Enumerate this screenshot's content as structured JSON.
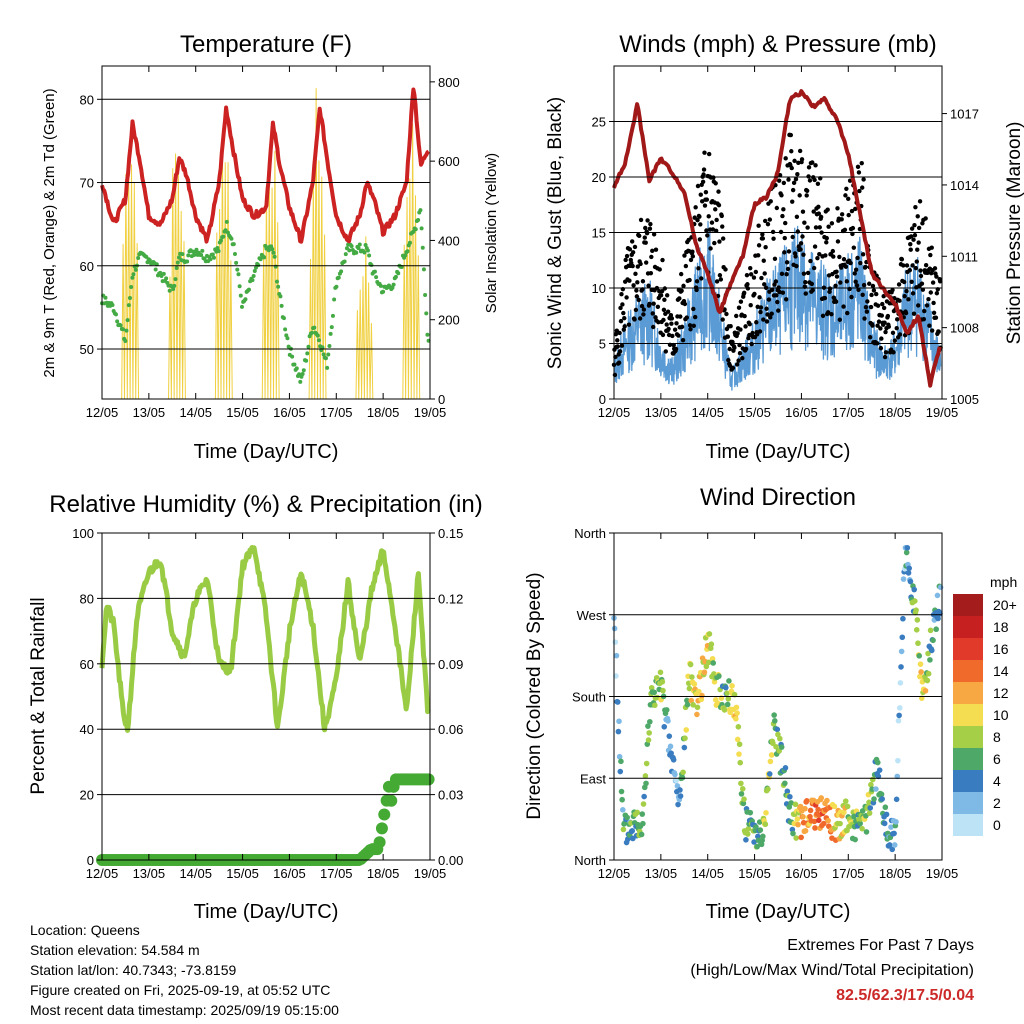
{
  "x_ticks": [
    "12/05",
    "13/05",
    "14/05",
    "15/05",
    "16/05",
    "17/05",
    "18/05",
    "19/05"
  ],
  "colors": {
    "red_temp": "#cc2222",
    "green_dew": "#44aa44",
    "yellow_solar": "#f0d040",
    "wind_blue": "#5b9bd5",
    "gust_black": "#000000",
    "pressure_maroon": "#a01818",
    "rh_green": "#99cc44",
    "rain_green": "#44aa33"
  },
  "footer": {
    "location": "Location: Queens",
    "elevation": "Station elevation: 54.584 m",
    "latlon": "Station lat/lon: 40.7343; -73.8159",
    "created": "Figure created on Fri, 2025-09-19, at 05:52 UTC",
    "recent": "Most recent data timestamp: 2025/09/19 05:15:00",
    "extremes_title": "Extremes For Past 7 Days",
    "extremes_sub": "(High/Low/Max Wind/Total Precipitation)",
    "extremes_values": "82.5/62.3/17.5/0.04"
  },
  "chart_data": [
    {
      "type": "line",
      "title": "Temperature (F)",
      "xlabel": "Time (Day/UTC)",
      "ylabel": "2m & 9m T (Red, Orange) & 2m Td (Green)",
      "ylabel_right": "Solar Insolation (Yellow)",
      "ylim": [
        44,
        84
      ],
      "yticks": [
        50,
        60,
        70,
        80
      ],
      "ylim_right": [
        0,
        840
      ],
      "yticks_right": [
        0,
        200,
        400,
        600,
        800
      ],
      "x": [
        0,
        0.25,
        0.5,
        0.65,
        0.8,
        1.0,
        1.25,
        1.5,
        1.65,
        1.8,
        2.0,
        2.25,
        2.5,
        2.65,
        2.8,
        3.0,
        3.25,
        3.5,
        3.65,
        3.8,
        4.0,
        4.25,
        4.5,
        4.65,
        4.8,
        5.0,
        5.25,
        5.5,
        5.65,
        5.8,
        6.0,
        6.25,
        6.5,
        6.65,
        6.8,
        6.95
      ],
      "series": [
        {
          "values": [
            70,
            65,
            68,
            77,
            73,
            66,
            65,
            68,
            73,
            71,
            66,
            63,
            70,
            79,
            74,
            68,
            66,
            67,
            77,
            72,
            67,
            63,
            70,
            79,
            73,
            66,
            63,
            66,
            70,
            68,
            64,
            66,
            70,
            82,
            72,
            74
          ]
        },
        {
          "values": [
            56,
            55,
            51,
            59,
            61,
            61,
            59,
            57,
            61,
            61,
            62,
            61,
            62,
            65,
            63,
            55,
            59,
            62,
            62,
            56,
            50,
            46,
            53,
            51,
            48,
            58,
            62,
            62,
            62,
            59,
            57,
            58,
            62,
            64,
            67,
            51
          ]
        },
        {
          "values": [
            0,
            0,
            20,
            780,
            90,
            0,
            0,
            30,
            720,
            80,
            0,
            0,
            40,
            790,
            60,
            0,
            0,
            30,
            760,
            90,
            0,
            0,
            30,
            810,
            70,
            0,
            0,
            20,
            420,
            60,
            0,
            0,
            60,
            760,
            150,
            0
          ]
        }
      ]
    },
    {
      "type": "scatter",
      "title": "Winds (mph) & Pressure (mb)",
      "xlabel": "Time (Day/UTC)",
      "ylabel": "Sonic Wind & Gust (Blue, Black)",
      "ylabel_right": "Station Pressure (Maroon)",
      "ylim": [
        0,
        30
      ],
      "yticks": [
        0,
        5,
        10,
        15,
        20,
        25
      ],
      "ylim_right": [
        1005,
        1019
      ],
      "yticks_right": [
        1005,
        1008,
        1011,
        1014,
        1017
      ],
      "x": [
        0,
        0.25,
        0.5,
        0.75,
        1.0,
        1.25,
        1.5,
        1.75,
        2.0,
        2.25,
        2.5,
        2.75,
        3.0,
        3.25,
        3.5,
        3.75,
        4.0,
        4.25,
        4.5,
        4.75,
        5.0,
        5.25,
        5.5,
        5.75,
        6.0,
        6.25,
        6.5,
        6.75,
        6.95
      ],
      "series": [
        {
          "values": [
            3,
            6,
            8,
            9,
            5,
            3,
            6,
            10,
            13,
            8,
            2,
            4,
            6,
            9,
            10,
            12,
            13,
            11,
            10,
            9,
            11,
            12,
            6,
            4,
            5,
            10,
            11,
            7,
            4
          ]
        },
        {
          "values": [
            4,
            11,
            13,
            15,
            12,
            6,
            11,
            15,
            21,
            16,
            5,
            8,
            12,
            15,
            17,
            20,
            21,
            18,
            16,
            15,
            16,
            19,
            11,
            8,
            9,
            12,
            16,
            12,
            9
          ]
        },
        {
          "values": [
            1013.9,
            1015.0,
            1017.4,
            1014.2,
            1015.1,
            1014.5,
            1013.7,
            1011.5,
            1010.3,
            1008.6,
            1009.9,
            1011.0,
            1013.2,
            1013.5,
            1014.5,
            1017.6,
            1017.9,
            1017.3,
            1017.6,
            1016.8,
            1015.3,
            1012.8,
            1010.3,
            1009.6,
            1009.0,
            1007.8,
            1008.5,
            1005.6,
            1007.2
          ]
        }
      ]
    },
    {
      "type": "line",
      "title": "Relative Humidity (%) & Precipitation (in)",
      "xlabel": "Time (Day/UTC)",
      "ylabel": "Percent & Total Rainfall",
      "ylim": [
        0,
        100
      ],
      "yticks": [
        0,
        20,
        40,
        60,
        80,
        100
      ],
      "ylim_right": [
        0,
        0.15
      ],
      "yticks_right": [
        "0.00",
        "0.03",
        "0.06",
        "0.09",
        "0.12",
        "0.15"
      ],
      "x": [
        0,
        0.1,
        0.25,
        0.45,
        0.55,
        0.75,
        1.0,
        1.25,
        1.5,
        1.75,
        2.0,
        2.25,
        2.5,
        2.75,
        3.0,
        3.25,
        3.5,
        3.75,
        4.0,
        4.25,
        4.5,
        4.75,
        5.0,
        5.25,
        5.5,
        5.75,
        6.0,
        6.25,
        6.5,
        6.75,
        6.95
      ],
      "series": [
        {
          "values": [
            60,
            78,
            72,
            45,
            40,
            75,
            88,
            92,
            70,
            62,
            80,
            86,
            60,
            58,
            90,
            96,
            75,
            40,
            70,
            88,
            72,
            40,
            55,
            85,
            60,
            82,
            95,
            72,
            45,
            88,
            45
          ]
        },
        {
          "values": [
            0,
            0,
            0,
            0,
            0,
            0,
            0,
            0,
            0,
            0,
            0,
            0,
            0,
            0,
            0,
            0,
            0,
            0,
            0,
            0,
            0,
            0,
            0,
            0,
            0,
            0.005,
            0.005,
            0.037,
            0.037,
            0.037,
            0.037
          ]
        }
      ]
    },
    {
      "type": "scatter",
      "title": "Wind Direction",
      "xlabel": "Time (Day/UTC)",
      "ylabel": "Direction (Colored By Speed)",
      "yticks": [
        "North",
        "East",
        "South",
        "West",
        "North"
      ],
      "ylim": [
        0,
        360
      ],
      "legend_title": "mph",
      "legend_levels": [
        "20+",
        "18",
        "16",
        "14",
        "12",
        "10",
        "8",
        "6",
        "4",
        "2",
        "0"
      ],
      "legend_colors": [
        "#a51c1c",
        "#c62020",
        "#e23a2a",
        "#f06a2c",
        "#f8a842",
        "#f5dd52",
        "#a4cf46",
        "#4ea867",
        "#3a7cc0",
        "#7fb9e6",
        "#bde3f6"
      ],
      "x": [
        0,
        0.2,
        0.4,
        0.6,
        0.8,
        1.0,
        1.2,
        1.4,
        1.6,
        1.8,
        2.0,
        2.2,
        2.4,
        2.6,
        2.8,
        3.0,
        3.2,
        3.4,
        3.6,
        3.8,
        4.0,
        4.2,
        4.4,
        4.6,
        4.8,
        5.0,
        5.2,
        5.4,
        5.6,
        5.8,
        6.0,
        6.2,
        6.4,
        6.6,
        6.8,
        6.95
      ],
      "series": [
        {
          "values": [
            270,
            30,
            40,
            45,
            180,
            190,
            120,
            60,
            200,
            175,
            240,
            185,
            180,
            170,
            40,
            35,
            30,
            150,
            100,
            40,
            45,
            50,
            55,
            45,
            40,
            50,
            35,
            45,
            100,
            40,
            20,
            340,
            290,
            180,
            250,
            290
          ]
        },
        {
          "values": [
            2,
            6,
            6,
            8,
            8,
            9,
            3,
            4,
            10,
            11,
            11,
            9,
            7,
            12,
            7,
            6,
            9,
            8,
            7,
            7,
            14,
            13,
            15,
            14,
            11,
            10,
            8,
            9,
            6,
            5,
            4,
            3,
            7,
            11,
            6,
            5
          ]
        }
      ]
    }
  ]
}
